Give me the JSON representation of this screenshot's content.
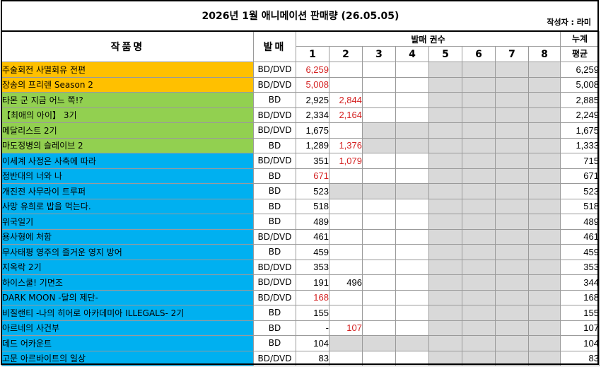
{
  "title": "2026년 1월 애니메이션 판매량 (26.05.05)",
  "author": "작성자 : 라미",
  "headers": {
    "name": "작품명",
    "format": "발매",
    "volumes_group": "발매 권수",
    "volumes": [
      "1",
      "2",
      "3",
      "4",
      "5",
      "6",
      "7",
      "8"
    ],
    "cumulative_avg_line1": "누계",
    "cumulative_avg_line2": "평균"
  },
  "colors": {
    "orange": "#ffc000",
    "green": "#92d050",
    "blue": "#00b0f0",
    "red_text": "#d42020",
    "gray_cell": "#d9d9d9"
  },
  "rows": [
    {
      "name": "주술회전 사멸회유 전편",
      "format": "BD/DVD",
      "group": "orange",
      "vols": [
        "6,259",
        "",
        "",
        ""
      ],
      "red": [
        true,
        false,
        false,
        false
      ],
      "avg": "6,259"
    },
    {
      "name": "장송의 프리렌 Season 2",
      "format": "BD/DVD",
      "group": "orange",
      "vols": [
        "5,008",
        "",
        "",
        ""
      ],
      "red": [
        true,
        false,
        false,
        false
      ],
      "avg": "5,008"
    },
    {
      "name": "타몬 군 지금 어느 쪽!?",
      "format": "BD",
      "group": "green",
      "vols": [
        "2,925",
        "2,844",
        "",
        ""
      ],
      "red": [
        false,
        true,
        false,
        false
      ],
      "avg": "2,885"
    },
    {
      "name": "【최애의 아이】 3기",
      "format": "BD/DVD",
      "group": "green",
      "vols": [
        "2,334",
        "2,164",
        "",
        ""
      ],
      "red": [
        false,
        true,
        false,
        false
      ],
      "avg": "2,249"
    },
    {
      "name": "메달리스트 2기",
      "format": "BD/DVD",
      "group": "green",
      "vols": [
        "1,675",
        ""
      ],
      "red": [
        false,
        false
      ],
      "avg": "1,675"
    },
    {
      "name": "마도정병의 슬레이브 2",
      "format": "BD",
      "group": "green",
      "vols": [
        "1,289",
        "1,376"
      ],
      "red": [
        false,
        true
      ],
      "avg": "1,333"
    },
    {
      "name": "이세계 사정은 사축에 따라",
      "format": "BD/DVD",
      "group": "blue",
      "vols": [
        "351",
        "1,079",
        "",
        ""
      ],
      "red": [
        false,
        true,
        false,
        false
      ],
      "avg": "715"
    },
    {
      "name": "정반대의 너와 나",
      "format": "BD",
      "group": "blue",
      "vols": [
        "671",
        "",
        "",
        ""
      ],
      "red": [
        true,
        false,
        false,
        false
      ],
      "avg": "671"
    },
    {
      "name": "개진전 사무라이 트루퍼",
      "format": "BD",
      "group": "blue",
      "vols": [
        "523"
      ],
      "red": [
        false
      ],
      "avg": "523"
    },
    {
      "name": "사망 유희로 밥을 먹는다.",
      "format": "BD",
      "group": "blue",
      "vols": [
        "518",
        "",
        "",
        ""
      ],
      "red": [
        false,
        false,
        false,
        false
      ],
      "avg": "518"
    },
    {
      "name": "위국일기",
      "format": "BD",
      "group": "blue",
      "vols": [
        "489",
        "",
        "",
        ""
      ],
      "red": [
        false,
        false,
        false,
        false
      ],
      "avg": "489"
    },
    {
      "name": "용사형에 처함",
      "format": "BD/DVD",
      "group": "blue",
      "vols": [
        "461",
        "",
        "",
        ""
      ],
      "red": [
        false,
        false,
        false,
        false
      ],
      "avg": "461"
    },
    {
      "name": "무사태평 영주의 즐거운 영지 방어",
      "format": "BD",
      "group": "blue",
      "vols": [
        "459",
        "",
        "",
        ""
      ],
      "red": [
        false,
        false,
        false,
        false
      ],
      "avg": "459"
    },
    {
      "name": "지옥락 2기",
      "format": "BD/DVD",
      "group": "blue",
      "vols": [
        "353",
        "",
        "",
        ""
      ],
      "red": [
        false,
        false,
        false,
        false
      ],
      "avg": "353"
    },
    {
      "name": "하이스쿨! 기면조",
      "format": "BD/DVD",
      "group": "blue",
      "vols": [
        "191",
        "496",
        "",
        ""
      ],
      "red": [
        false,
        false,
        false,
        false
      ],
      "avg": "344"
    },
    {
      "name": "DARK MOON -달의 제단-",
      "format": "BD/DVD",
      "group": "blue",
      "vols": [
        "168",
        "",
        "",
        ""
      ],
      "red": [
        true,
        false,
        false,
        false
      ],
      "avg": "168"
    },
    {
      "name": "비질랜티 -나의 히어로 아카데미아 ILLEGALS- 2기",
      "format": "BD",
      "group": "blue",
      "vols": [
        "155",
        "",
        "",
        ""
      ],
      "red": [
        false,
        false,
        false,
        false
      ],
      "avg": "155"
    },
    {
      "name": "아르네의 사건부",
      "format": "BD",
      "group": "blue",
      "vols": [
        "-",
        "107",
        "",
        ""
      ],
      "red": [
        false,
        true,
        false,
        false
      ],
      "avg": "107"
    },
    {
      "name": "데드 어카운트",
      "format": "BD",
      "group": "blue",
      "vols": [
        "104"
      ],
      "red": [
        false
      ],
      "avg": "104"
    },
    {
      "name": "고문 아르바이트의 일상",
      "format": "BD/DVD",
      "group": "blue",
      "vols": [
        "83",
        "",
        "",
        ""
      ],
      "red": [
        false,
        false,
        false,
        false
      ],
      "avg": "83"
    }
  ]
}
